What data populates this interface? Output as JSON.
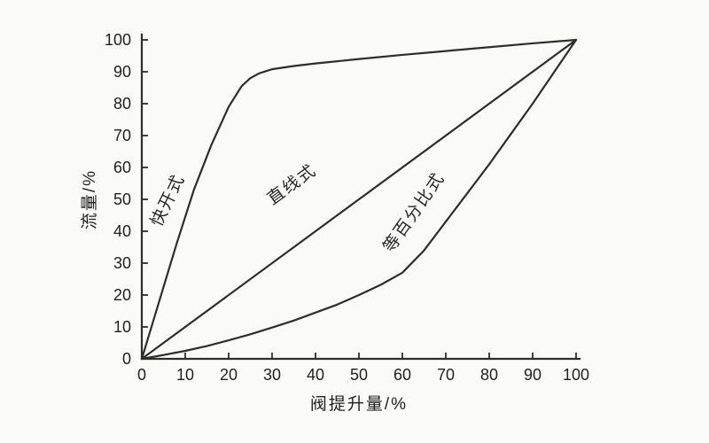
{
  "chart_data": {
    "type": "line",
    "title": "",
    "xlabel": "阀提升量/%",
    "ylabel": "流量/%",
    "xlim": [
      0,
      100
    ],
    "ylim": [
      0,
      100
    ],
    "x_ticks": [
      0,
      10,
      20,
      30,
      40,
      50,
      60,
      70,
      80,
      90,
      100
    ],
    "y_ticks": [
      0,
      10,
      20,
      30,
      40,
      50,
      60,
      70,
      80,
      90,
      100
    ],
    "grid": false,
    "legend_position": "none",
    "line_color": "#2d2d2d",
    "series": [
      {
        "name": "快开式",
        "points": [
          [
            0,
            0
          ],
          [
            4,
            18
          ],
          [
            8,
            36
          ],
          [
            12,
            53
          ],
          [
            16,
            67
          ],
          [
            20,
            79
          ],
          [
            23,
            85.5
          ],
          [
            25,
            88
          ],
          [
            27,
            89.5
          ],
          [
            30,
            90.8
          ],
          [
            35,
            91.8
          ],
          [
            40,
            92.6
          ],
          [
            50,
            94
          ],
          [
            60,
            95.3
          ],
          [
            70,
            96.5
          ],
          [
            80,
            97.7
          ],
          [
            90,
            98.9
          ],
          [
            100,
            100
          ]
        ]
      },
      {
        "name": "直线式",
        "points": [
          [
            0,
            0
          ],
          [
            100,
            100
          ]
        ]
      },
      {
        "name": "等百分比式",
        "points": [
          [
            0,
            0
          ],
          [
            5,
            1.2
          ],
          [
            10,
            2.5
          ],
          [
            15,
            4
          ],
          [
            20,
            5.8
          ],
          [
            25,
            7.7
          ],
          [
            30,
            9.8
          ],
          [
            35,
            12
          ],
          [
            40,
            14.5
          ],
          [
            45,
            17
          ],
          [
            50,
            20
          ],
          [
            55,
            23.2
          ],
          [
            60,
            27
          ],
          [
            65,
            34
          ],
          [
            70,
            43
          ],
          [
            75,
            52
          ],
          [
            80,
            61
          ],
          [
            85,
            70.5
          ],
          [
            90,
            80
          ],
          [
            95,
            90
          ],
          [
            100,
            100
          ]
        ]
      }
    ],
    "curve_labels": [
      {
        "text": "快开式",
        "x": 7.1,
        "y": 49,
        "angle": -64
      },
      {
        "text": "直线式",
        "x": 35.3,
        "y": 53.3,
        "angle": -36
      },
      {
        "text": "等百分比式",
        "x": 63.7,
        "y": 45,
        "angle": -55
      }
    ]
  }
}
